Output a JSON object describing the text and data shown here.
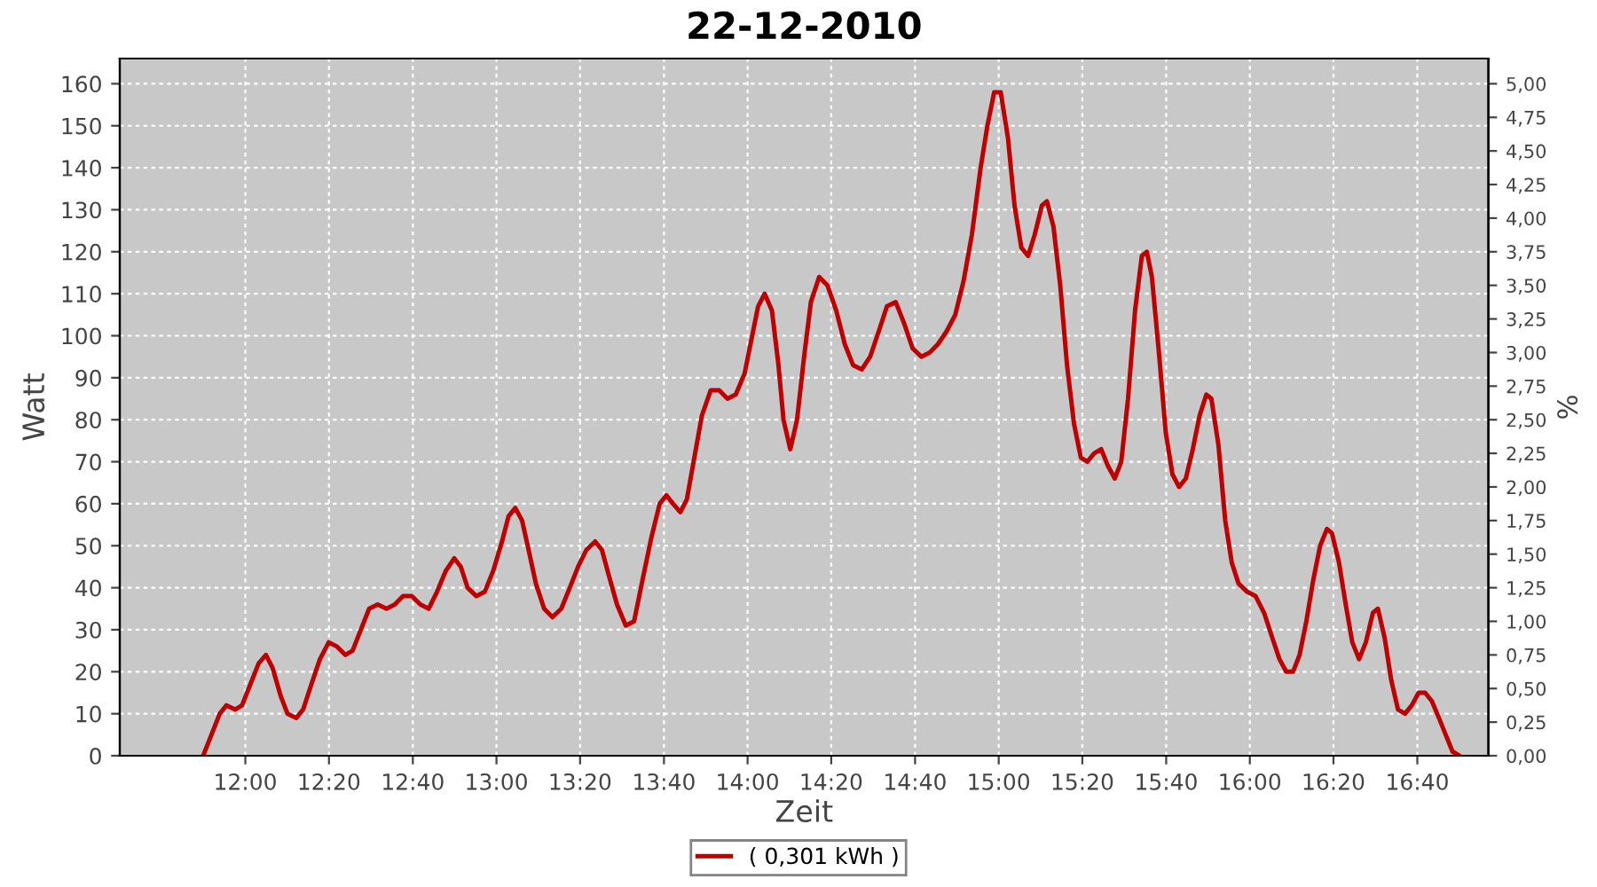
{
  "chart_data": {
    "type": "line",
    "title": "22-12-2010",
    "xlabel": "Zeit",
    "ylabel": "Watt",
    "y2label": "%",
    "xlim": [
      11.5,
      16.95
    ],
    "xticks": [
      {
        "value": 12,
        "label": "12:00"
      },
      {
        "value": 12.333,
        "label": "12:20"
      },
      {
        "value": 12.667,
        "label": "12:40"
      },
      {
        "value": 13,
        "label": "13:00"
      },
      {
        "value": 13.333,
        "label": "13:20"
      },
      {
        "value": 13.667,
        "label": "13:40"
      },
      {
        "value": 14,
        "label": "14:00"
      },
      {
        "value": 14.333,
        "label": "14:20"
      },
      {
        "value": 14.667,
        "label": "14:40"
      },
      {
        "value": 15,
        "label": "15:00"
      },
      {
        "value": 15.333,
        "label": "15:20"
      },
      {
        "value": 15.667,
        "label": "15:40"
      },
      {
        "value": 16,
        "label": "16:00"
      },
      {
        "value": 16.333,
        "label": "16:20"
      },
      {
        "value": 16.667,
        "label": "16:40"
      }
    ],
    "ylim": [
      0,
      166
    ],
    "yticks": [
      0,
      10,
      20,
      30,
      40,
      50,
      60,
      70,
      80,
      90,
      100,
      110,
      120,
      130,
      140,
      150,
      160
    ],
    "y2lim": [
      0,
      5.1875
    ],
    "y2ticks": [
      {
        "value": 0,
        "label": "0,00"
      },
      {
        "value": 0.25,
        "label": "0,25"
      },
      {
        "value": 0.5,
        "label": "0,50"
      },
      {
        "value": 0.75,
        "label": "0,75"
      },
      {
        "value": 1,
        "label": "1,00"
      },
      {
        "value": 1.25,
        "label": "1,25"
      },
      {
        "value": 1.5,
        "label": "1,50"
      },
      {
        "value": 1.75,
        "label": "1,75"
      },
      {
        "value": 2,
        "label": "2,00"
      },
      {
        "value": 2.25,
        "label": "2,25"
      },
      {
        "value": 2.5,
        "label": "2,50"
      },
      {
        "value": 2.75,
        "label": "2,75"
      },
      {
        "value": 3,
        "label": "3,00"
      },
      {
        "value": 3.25,
        "label": "3,25"
      },
      {
        "value": 3.5,
        "label": "3,50"
      },
      {
        "value": 3.75,
        "label": "3,75"
      },
      {
        "value": 4,
        "label": "4,00"
      },
      {
        "value": 4.25,
        "label": "4,25"
      },
      {
        "value": 4.5,
        "label": "4,50"
      },
      {
        "value": 4.75,
        "label": "4,75"
      },
      {
        "value": 5,
        "label": "5,00"
      }
    ],
    "grid": true,
    "legend": "bottom",
    "marker": "none",
    "line_style": "solid",
    "x": [
      11.832,
      11.865,
      11.898,
      11.925,
      11.96,
      11.987,
      12.02,
      12.053,
      12.082,
      12.108,
      12.142,
      12.168,
      12.203,
      12.23,
      12.263,
      12.297,
      12.332,
      12.365,
      12.398,
      12.427,
      12.46,
      12.493,
      12.527,
      12.562,
      12.595,
      12.628,
      12.663,
      12.697,
      12.73,
      12.763,
      12.798,
      12.832,
      12.858,
      12.885,
      12.92,
      12.953,
      12.987,
      13.022,
      13.048,
      13.075,
      13.102,
      13.128,
      13.157,
      13.19,
      13.223,
      13.258,
      13.292,
      13.325,
      13.358,
      13.393,
      13.42,
      13.447,
      13.48,
      13.515,
      13.548,
      13.582,
      13.617,
      13.65,
      13.677,
      13.703,
      13.732,
      13.758,
      13.785,
      13.818,
      13.853,
      13.887,
      13.92,
      13.953,
      13.988,
      14.015,
      14.042,
      14.068,
      14.097,
      14.123,
      14.143,
      14.17,
      14.197,
      14.225,
      14.252,
      14.285,
      14.318,
      14.353,
      14.387,
      14.42,
      14.455,
      14.488,
      14.522,
      14.555,
      14.59,
      14.623,
      14.657,
      14.692,
      14.725,
      14.758,
      14.792,
      14.827,
      14.86,
      14.893,
      14.928,
      14.955,
      14.982,
      15.008,
      15.037,
      15.063,
      15.09,
      15.117,
      15.143,
      15.172,
      15.192,
      15.218,
      15.245,
      15.272,
      15.3,
      15.327,
      15.353,
      15.38,
      15.408,
      15.435,
      15.462,
      15.488,
      15.515,
      15.543,
      15.57,
      15.59,
      15.61,
      15.638,
      15.665,
      15.692,
      15.718,
      15.745,
      15.773,
      15.8,
      15.827,
      15.847,
      15.875,
      15.902,
      15.928,
      15.955,
      15.99,
      16.023,
      16.057,
      16.09,
      16.118,
      16.145,
      16.172,
      16.198,
      16.225,
      16.253,
      16.28,
      16.307,
      16.327,
      16.355,
      16.382,
      16.408,
      16.435,
      16.462,
      16.49,
      16.51,
      16.537,
      16.563,
      16.59,
      16.618,
      16.645,
      16.672,
      16.698,
      16.725,
      16.753,
      16.78,
      16.807,
      16.835
    ],
    "series": [
      {
        "name": "( 0,301 kWh )",
        "color": "#c00000",
        "values": [
          0,
          5,
          10,
          12,
          11,
          12,
          17,
          22,
          24,
          21,
          14,
          10,
          9,
          11,
          17,
          23,
          27,
          26,
          24,
          25,
          30,
          35,
          36,
          35,
          36,
          38,
          38,
          36,
          35,
          39,
          44,
          47,
          45,
          40,
          38,
          39,
          44,
          51,
          57,
          59,
          56,
          49,
          41,
          35,
          33,
          35,
          40,
          45,
          49,
          51,
          49,
          43,
          36,
          31,
          32,
          42,
          52,
          60,
          62,
          60,
          58,
          61,
          70,
          81,
          87,
          87,
          85,
          86,
          91,
          99,
          107,
          110,
          106,
          93,
          80,
          73,
          80,
          95,
          108,
          114,
          112,
          106,
          98,
          93,
          92,
          95,
          101,
          107,
          108,
          103,
          97,
          95,
          96,
          98,
          101,
          105,
          113,
          124,
          140,
          150,
          158,
          158,
          147,
          131,
          121,
          119,
          124,
          131,
          132,
          126,
          112,
          93,
          79,
          71,
          70,
          72,
          73,
          69,
          66,
          70,
          85,
          106,
          119,
          120,
          114,
          96,
          77,
          67,
          64,
          66,
          73,
          81,
          86,
          85,
          74,
          56,
          46,
          41,
          39,
          38,
          34,
          28,
          23,
          20,
          20,
          24,
          32,
          42,
          50,
          54,
          53,
          46,
          36,
          27,
          23,
          27,
          34,
          35,
          28,
          18,
          11,
          10,
          12,
          15,
          15,
          13,
          9,
          5,
          1,
          0
        ]
      }
    ]
  }
}
